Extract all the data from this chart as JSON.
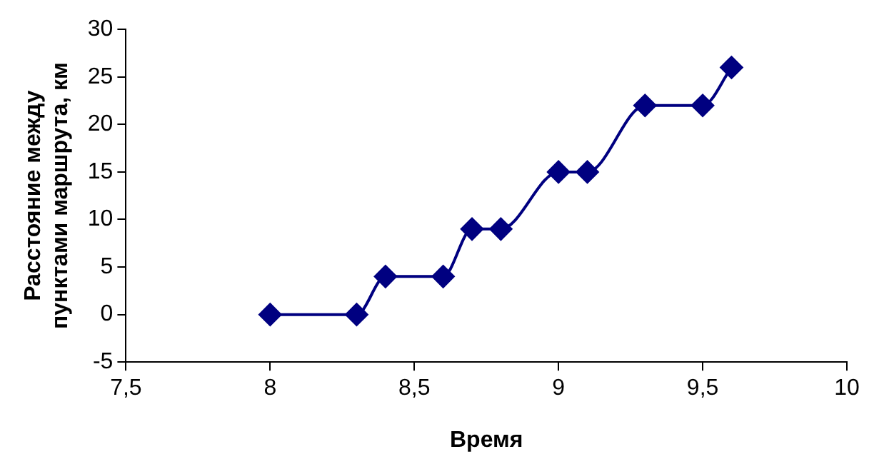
{
  "chart_data": {
    "type": "line",
    "xlabel": "Время",
    "ylabel": "Расстояние между пунктами маршрута, км",
    "x": [
      8,
      8.3,
      8.4,
      8.6,
      8.7,
      8.8,
      9,
      9.1,
      9.3,
      9.5,
      9.6
    ],
    "series": [
      {
        "color": "#000080",
        "values": [
          0,
          0,
          4,
          4,
          9,
          9,
          15,
          15,
          22,
          22,
          26
        ]
      }
    ],
    "xlim": [
      7.5,
      10
    ],
    "xticks": [
      {
        "value": 7.5,
        "label": "7,5"
      },
      8,
      {
        "value": 8.5,
        "label": "8,5"
      },
      9,
      {
        "value": 9.5,
        "label": "9,5"
      },
      10
    ],
    "ylim": [
      -5,
      30
    ],
    "yticks": [
      -5,
      0,
      5,
      10,
      15,
      20,
      25,
      30
    ],
    "grid": false,
    "legend": false,
    "marker": "diamond",
    "line_style": "solid"
  }
}
